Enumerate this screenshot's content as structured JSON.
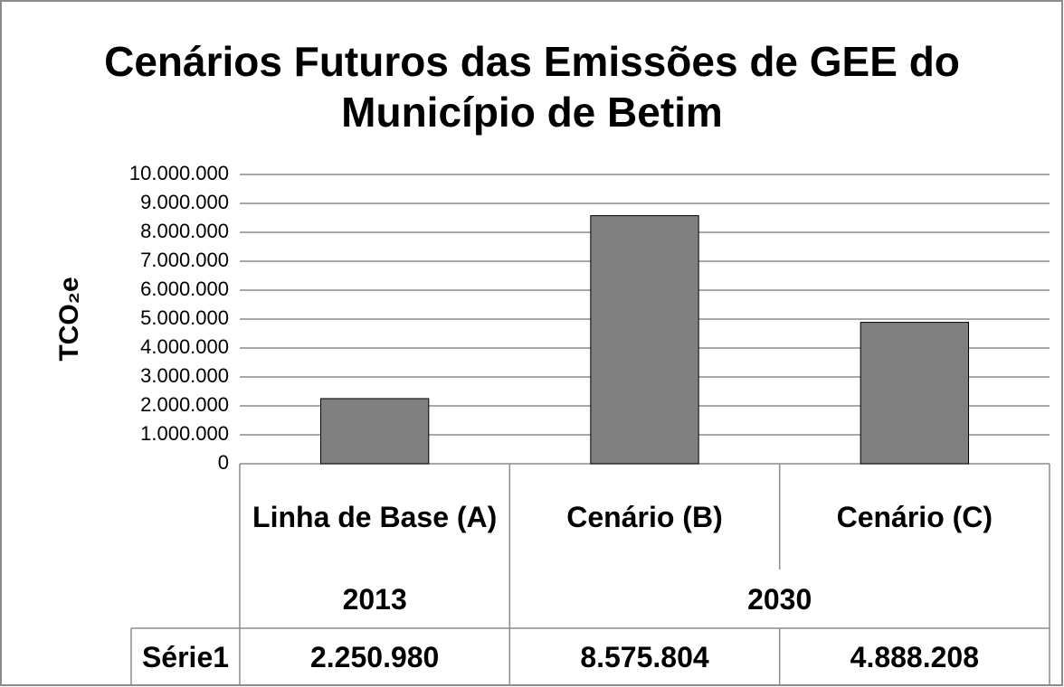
{
  "chart_data": {
    "type": "bar",
    "title": "Cenários Futuros das Emissões de GEE do Município de Betim",
    "y_label": "TCO₂e",
    "categories": [
      "Linha de Base (A)",
      "Cenário (B)",
      "Cenário (C)"
    ],
    "category_groups": [
      {
        "label": "2013",
        "span": 1
      },
      {
        "label": "2030",
        "span": 2
      }
    ],
    "series": [
      {
        "name": "Série1",
        "color": "#808080",
        "values": [
          2250980,
          8575804,
          4888208
        ],
        "value_labels": [
          "2.250.980",
          "8.575.804",
          "4.888.208"
        ]
      }
    ],
    "ylim": [
      0,
      10000000
    ],
    "yticks": [
      0,
      {
        "value": 1000000,
        "label": "1.000.000"
      },
      {
        "value": 2000000,
        "label": "2.000.000"
      },
      {
        "value": 3000000,
        "label": "3.000.000"
      },
      {
        "value": 4000000,
        "label": "4.000.000"
      },
      {
        "value": 5000000,
        "label": "5.000.000"
      },
      {
        "value": 6000000,
        "label": "6.000.000"
      },
      {
        "value": 7000000,
        "label": "7.000.000"
      },
      {
        "value": 8000000,
        "label": "8.000.000"
      },
      {
        "value": 9000000,
        "label": "9.000.000"
      },
      {
        "value": 10000000,
        "label": "10.000.000"
      }
    ],
    "grid": true,
    "data_table": true
  }
}
